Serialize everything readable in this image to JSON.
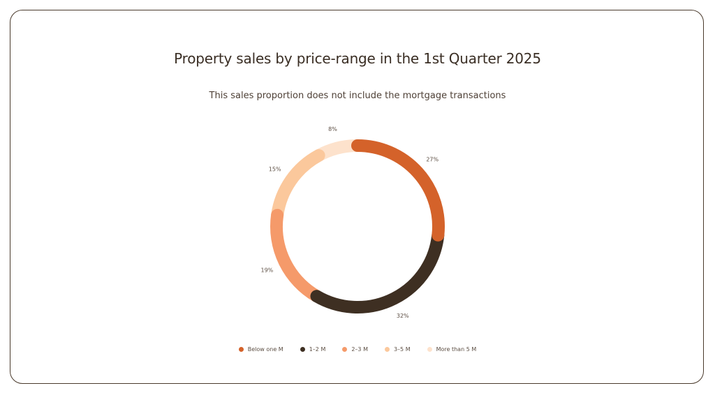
{
  "chart_data": {
    "type": "pie",
    "variant": "donut",
    "title": "Property sales by price-range in the 1st Quarter 2025",
    "subtitle": "This sales proportion does not include the mortgage transactions",
    "legend_position": "bottom",
    "slices": [
      {
        "label": "Below one M",
        "value": 27,
        "value_label": "27%",
        "color": "#d4622a"
      },
      {
        "label": "1–2 M",
        "value": 32,
        "value_label": "32%",
        "color": "#3e2f22"
      },
      {
        "label": "2–3 M",
        "value": 19,
        "value_label": "19%",
        "color": "#f59a6a"
      },
      {
        "label": "3–5 M",
        "value": 15,
        "value_label": "15%",
        "color": "#fbc89c"
      },
      {
        "label": "More than 5 M",
        "value": 8,
        "value_label": "8%",
        "color": "#fde2cc"
      }
    ]
  }
}
